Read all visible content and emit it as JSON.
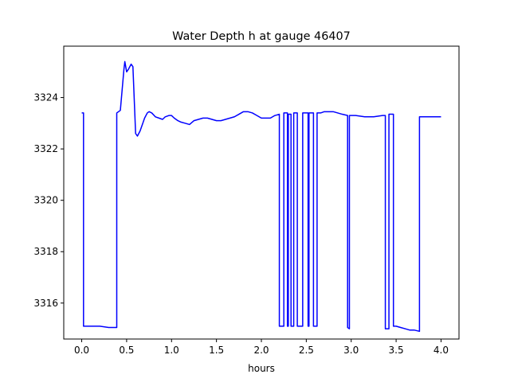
{
  "chart_data": {
    "type": "line",
    "title": "Water Depth h at gauge 46407",
    "xlabel": "hours",
    "ylabel": "",
    "xlim": [
      -0.2,
      4.2
    ],
    "ylim": [
      3314.6,
      3326.0
    ],
    "xticks": [
      0.0,
      0.5,
      1.0,
      1.5,
      2.0,
      2.5,
      3.0,
      3.5,
      4.0
    ],
    "xtick_labels": [
      "0.0",
      "0.5",
      "1.0",
      "1.5",
      "2.0",
      "2.5",
      "3.0",
      "3.5",
      "4.0"
    ],
    "yticks": [
      3316,
      3318,
      3320,
      3322,
      3324
    ],
    "ytick_labels": [
      "3316",
      "3318",
      "3320",
      "3322",
      "3324"
    ],
    "grid": false,
    "series": [
      {
        "color": "#0000ff",
        "x": [
          0.0,
          0.02,
          0.02,
          0.1,
          0.2,
          0.3,
          0.39,
          0.39,
          0.43,
          0.45,
          0.47,
          0.48,
          0.5,
          0.52,
          0.55,
          0.57,
          0.6,
          0.62,
          0.65,
          0.68,
          0.7,
          0.73,
          0.75,
          0.78,
          0.82,
          0.86,
          0.9,
          0.93,
          0.97,
          1.0,
          1.03,
          1.07,
          1.1,
          1.15,
          1.2,
          1.25,
          1.3,
          1.35,
          1.4,
          1.45,
          1.5,
          1.55,
          1.6,
          1.65,
          1.7,
          1.75,
          1.8,
          1.85,
          1.9,
          1.95,
          2.0,
          2.05,
          2.1,
          2.15,
          2.2,
          2.2,
          2.25,
          2.25,
          2.29,
          2.29,
          2.3,
          2.3,
          2.33,
          2.33,
          2.36,
          2.36,
          2.4,
          2.4,
          2.46,
          2.46,
          2.52,
          2.52,
          2.53,
          2.53,
          2.58,
          2.58,
          2.62,
          2.62,
          2.66,
          2.66,
          2.7,
          2.75,
          2.8,
          2.85,
          2.9,
          2.96,
          2.96,
          2.98,
          2.98,
          3.05,
          3.15,
          3.25,
          3.35,
          3.38,
          3.38,
          3.42,
          3.42,
          3.47,
          3.47,
          3.5,
          3.5,
          3.55,
          3.6,
          3.65,
          3.7,
          3.76,
          3.76,
          3.85,
          3.95,
          4.0
        ],
        "y": [
          3323.4,
          3323.4,
          3315.1,
          3315.1,
          3315.1,
          3315.05,
          3315.05,
          3323.4,
          3323.5,
          3324.3,
          3325.1,
          3325.4,
          3325.0,
          3325.1,
          3325.3,
          3325.2,
          3322.6,
          3322.5,
          3322.7,
          3323.0,
          3323.2,
          3323.4,
          3323.45,
          3323.4,
          3323.25,
          3323.2,
          3323.15,
          3323.25,
          3323.3,
          3323.3,
          3323.2,
          3323.1,
          3323.05,
          3323.0,
          3322.95,
          3323.1,
          3323.15,
          3323.2,
          3323.2,
          3323.15,
          3323.1,
          3323.1,
          3323.15,
          3323.2,
          3323.25,
          3323.35,
          3323.45,
          3323.45,
          3323.4,
          3323.3,
          3323.2,
          3323.2,
          3323.2,
          3323.3,
          3323.35,
          3315.1,
          3315.1,
          3323.4,
          3323.4,
          3315.1,
          3315.1,
          3323.35,
          3323.35,
          3315.1,
          3315.1,
          3323.4,
          3323.4,
          3315.1,
          3315.1,
          3323.4,
          3323.4,
          3315.1,
          3315.1,
          3323.4,
          3323.4,
          3315.1,
          3315.1,
          3323.4,
          3323.4,
          3323.4,
          3323.45,
          3323.45,
          3323.45,
          3323.4,
          3323.35,
          3323.3,
          3315.05,
          3315.0,
          3323.3,
          3323.3,
          3323.25,
          3323.25,
          3323.3,
          3323.3,
          3315.0,
          3315.0,
          3323.35,
          3323.35,
          3315.1,
          3315.1,
          3315.1,
          3315.05,
          3315.0,
          3314.95,
          3314.95,
          3314.9,
          3323.25,
          3323.25,
          3323.25,
          3323.25
        ]
      }
    ]
  }
}
